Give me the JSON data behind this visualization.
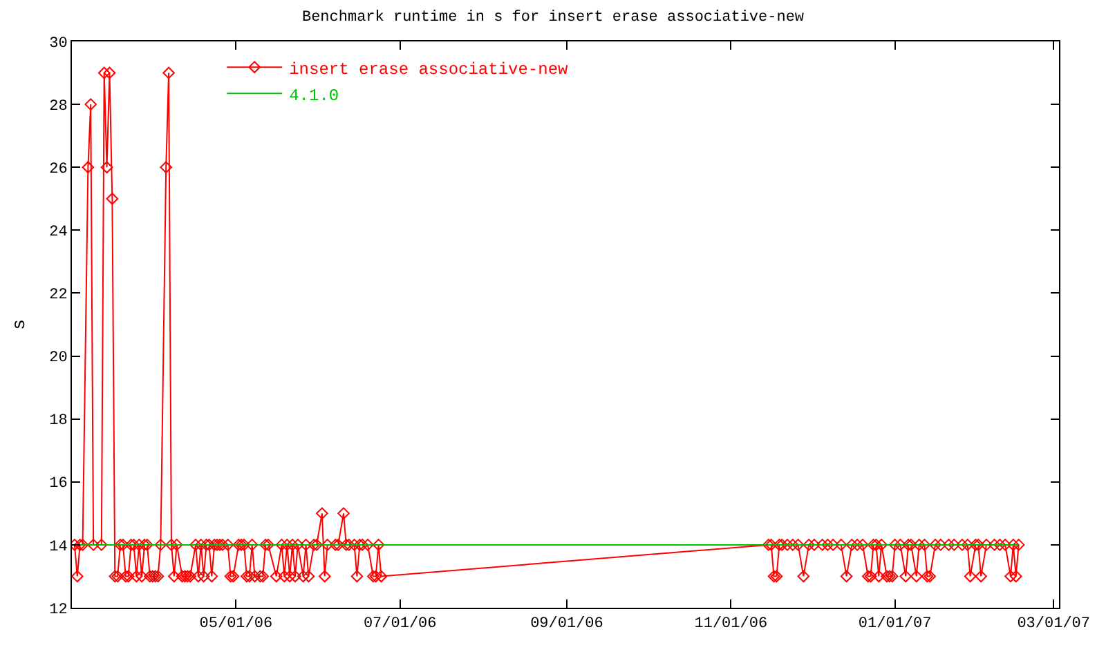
{
  "chart_data": {
    "type": "line",
    "title": "Benchmark runtime in s for insert erase associative-new",
    "ylabel": "s",
    "xlim": [
      "2006-03-01",
      "2007-03-03"
    ],
    "xticks": [
      {
        "value": "2006-05-01",
        "label": "05/01/06"
      },
      {
        "value": "2006-07-01",
        "label": "07/01/06"
      },
      {
        "value": "2006-09-01",
        "label": "09/01/06"
      },
      {
        "value": "2006-11-01",
        "label": "11/01/06"
      },
      {
        "value": "2007-01-01",
        "label": "01/01/07"
      },
      {
        "value": "2007-03-01",
        "label": "03/01/07"
      }
    ],
    "ylim": [
      12,
      30
    ],
    "yticks": [
      12,
      14,
      16,
      18,
      20,
      22,
      24,
      26,
      28,
      30
    ],
    "grid": false,
    "legend": "top left",
    "series": [
      {
        "name": "insert erase associative-new",
        "color": "#ff0000",
        "marker": "diamond",
        "x": [
          "2006-03-02",
          "2006-03-03",
          "2006-03-04",
          "2006-03-05",
          "2006-03-07",
          "2006-03-08",
          "2006-03-09",
          "2006-03-12",
          "2006-03-13",
          "2006-03-14",
          "2006-03-15",
          "2006-03-16",
          "2006-03-17",
          "2006-03-18",
          "2006-03-19",
          "2006-03-20",
          "2006-03-21",
          "2006-03-22",
          "2006-03-23",
          "2006-03-24",
          "2006-03-25",
          "2006-03-26",
          "2006-03-27",
          "2006-03-28",
          "2006-03-29",
          "2006-03-30",
          "2006-03-31",
          "2006-04-01",
          "2006-04-02",
          "2006-04-03",
          "2006-04-05",
          "2006-04-06",
          "2006-04-07",
          "2006-04-08",
          "2006-04-09",
          "2006-04-11",
          "2006-04-12",
          "2006-04-13",
          "2006-04-14",
          "2006-04-16",
          "2006-04-17",
          "2006-04-18",
          "2006-04-19",
          "2006-04-20",
          "2006-04-21",
          "2006-04-22",
          "2006-04-23",
          "2006-04-24",
          "2006-04-25",
          "2006-04-26",
          "2006-04-28",
          "2006-04-29",
          "2006-04-30",
          "2006-05-02",
          "2006-05-03",
          "2006-05-04",
          "2006-05-05",
          "2006-05-06",
          "2006-05-07",
          "2006-05-08",
          "2006-05-10",
          "2006-05-11",
          "2006-05-12",
          "2006-05-13",
          "2006-05-16",
          "2006-05-18",
          "2006-05-19",
          "2006-05-20",
          "2006-05-21",
          "2006-05-22",
          "2006-05-23",
          "2006-05-24",
          "2006-05-26",
          "2006-05-27",
          "2006-05-28",
          "2006-05-30",
          "2006-05-31",
          "2006-06-02",
          "2006-06-03",
          "2006-06-04",
          "2006-06-07",
          "2006-06-08",
          "2006-06-10",
          "2006-06-11",
          "2006-06-12",
          "2006-06-14",
          "2006-06-15",
          "2006-06-16",
          "2006-06-17",
          "2006-06-19",
          "2006-06-21",
          "2006-06-22",
          "2006-06-23",
          "2006-06-24",
          "2006-11-15",
          "2006-11-16",
          "2006-11-17",
          "2006-11-18",
          "2006-11-19",
          "2006-11-20",
          "2006-11-22",
          "2006-11-24",
          "2006-11-26",
          "2006-11-28",
          "2006-11-30",
          "2006-12-02",
          "2006-12-05",
          "2006-12-07",
          "2006-12-09",
          "2006-12-12",
          "2006-12-14",
          "2006-12-16",
          "2006-12-18",
          "2006-12-20",
          "2006-12-22",
          "2006-12-23",
          "2006-12-24",
          "2006-12-25",
          "2006-12-26",
          "2006-12-27",
          "2006-12-29",
          "2006-12-30",
          "2006-12-31",
          "2007-01-01",
          "2007-01-03",
          "2007-01-05",
          "2007-01-06",
          "2007-01-07",
          "2007-01-09",
          "2007-01-10",
          "2007-01-12",
          "2007-01-13",
          "2007-01-14",
          "2007-01-16",
          "2007-01-18",
          "2007-01-21",
          "2007-01-23",
          "2007-01-26",
          "2007-01-28",
          "2007-01-29",
          "2007-01-31",
          "2007-02-01",
          "2007-02-02",
          "2007-02-04",
          "2007-02-07",
          "2007-02-09",
          "2007-02-11",
          "2007-02-13",
          "2007-02-14",
          "2007-02-15",
          "2007-02-16"
        ],
        "values": [
          14,
          13,
          14,
          14,
          26,
          28,
          14,
          14,
          29,
          26,
          29,
          25,
          13,
          13,
          14,
          14,
          13,
          13,
          14,
          14,
          13,
          14,
          13,
          14,
          14,
          13,
          13,
          13,
          13,
          14,
          26,
          29,
          14,
          13,
          14,
          13,
          13,
          13,
          13,
          14,
          13,
          14,
          13,
          14,
          14,
          13,
          14,
          14,
          14,
          14,
          14,
          13,
          13,
          14,
          14,
          14,
          13,
          13,
          14,
          13,
          13,
          13,
          14,
          14,
          13,
          14,
          13,
          14,
          13,
          14,
          13,
          14,
          13,
          14,
          13,
          14,
          14,
          15,
          13,
          14,
          14,
          14,
          15,
          14,
          14,
          14,
          13,
          14,
          14,
          14,
          13,
          13,
          14,
          13,
          14,
          14,
          13,
          13,
          14,
          14,
          14,
          14,
          14,
          13,
          14,
          14,
          14,
          14,
          14,
          14,
          13,
          14,
          14,
          14,
          13,
          13,
          14,
          14,
          13,
          14,
          13,
          13,
          13,
          14,
          14,
          13,
          14,
          14,
          13,
          14,
          14,
          13,
          13,
          14,
          14,
          14,
          14,
          14,
          14,
          13,
          14,
          14,
          13,
          14,
          14,
          14,
          14,
          13,
          14,
          13,
          14
        ]
      },
      {
        "name": "4.1.0",
        "color": "#00c000",
        "marker": "none",
        "x": [
          "2006-03-01",
          "2007-02-16"
        ],
        "values": [
          14,
          14
        ]
      }
    ]
  }
}
